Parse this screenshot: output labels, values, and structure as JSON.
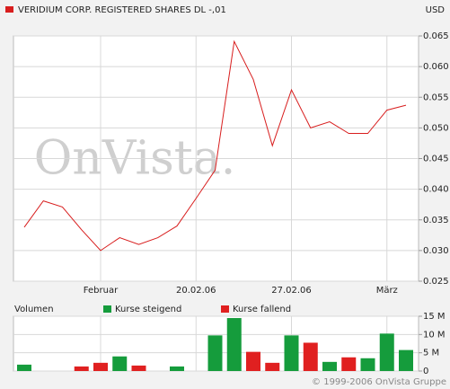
{
  "chart_data": [
    {
      "type": "line",
      "unit": "USD",
      "categories": [
        null,
        null,
        null,
        null,
        "Februar",
        null,
        null,
        null,
        null,
        "20.02.06",
        null,
        null,
        null,
        null,
        "27.02.06",
        null,
        null,
        null,
        null,
        "März",
        null
      ],
      "series": [
        {
          "name": "VERIDIUM CORP. REGISTERED SHARES DL -,01",
          "color": "#d81e1e",
          "values": [
            0.0338,
            0.0381,
            0.0371,
            0.0334,
            0.03,
            0.0321,
            0.031,
            0.0321,
            0.034,
            0.0385,
            0.0431,
            0.0641,
            0.0579,
            0.0471,
            0.0562,
            0.05,
            0.051,
            0.0491,
            0.0491,
            0.0529,
            0.0537
          ]
        }
      ],
      "ylim": [
        0.025,
        0.065
      ],
      "yticks": [
        {
          "value": 0.025,
          "label": "0.025"
        },
        {
          "value": 0.03,
          "label": "0.030"
        },
        0.035,
        {
          "value": 0.04,
          "label": "0.040"
        },
        0.045,
        {
          "value": 0.05,
          "label": "0.050"
        },
        0.055,
        {
          "value": 0.06,
          "label": "0.060"
        },
        0.065
      ],
      "grid": true,
      "watermark": "OnVista."
    },
    {
      "type": "bar",
      "title": "Volumen",
      "series": [
        {
          "name": "Kurse steigend",
          "color": "#159c3c",
          "values": [
            1.75,
            null,
            null,
            null,
            null,
            4,
            null,
            null,
            1.25,
            null,
            9.75,
            14.5,
            null,
            null,
            9.75,
            null,
            2.5,
            null,
            3.5,
            10.25,
            5.75
          ]
        },
        {
          "name": "Kurse fallend",
          "color": "#e02020",
          "values": [
            null,
            null,
            null,
            1.25,
            2.25,
            null,
            1.5,
            null,
            null,
            null,
            null,
            null,
            5.25,
            2.25,
            null,
            7.75,
            null,
            3.75,
            null,
            null,
            null
          ]
        }
      ],
      "ylim": [
        0,
        15
      ],
      "yticks": [
        0,
        {
          "value": 5,
          "label": "5 M"
        },
        {
          "value": 10,
          "label": "10 M"
        },
        {
          "value": 15,
          "label": "15 M"
        }
      ],
      "grid": true
    }
  ],
  "footer": "© 1999-2006 OnVista Gruppe"
}
